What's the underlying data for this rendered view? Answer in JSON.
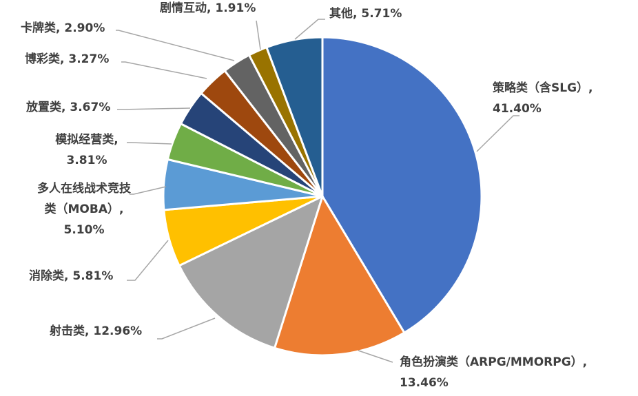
{
  "chart_data": {
    "type": "pie",
    "title": "",
    "slices": [
      {
        "name": "策略类（含SLG）",
        "value": 41.4,
        "label_lines": [
          "策略类（含SLG）,",
          "41.40%"
        ],
        "color": "#4472C4"
      },
      {
        "name": "角色扮演类（ARPG/MMORPG）",
        "value": 13.46,
        "label_lines": [
          "角色扮演类（ARPG/MMORPG）,",
          "13.46%"
        ],
        "color": "#ED7D31"
      },
      {
        "name": "射击类",
        "value": 12.96,
        "label_lines": [
          "射击类, 12.96%"
        ],
        "color": "#A5A5A5"
      },
      {
        "name": "消除类",
        "value": 5.81,
        "label_lines": [
          "消除类, 5.81%"
        ],
        "color": "#FFC000"
      },
      {
        "name": "多人在线战术竞技类（MOBA）",
        "value": 5.1,
        "label_lines": [
          "多人在线战术竞技",
          "类（MOBA）,",
          "5.10%"
        ],
        "color": "#5B9BD5"
      },
      {
        "name": "模拟经营类",
        "value": 3.81,
        "label_lines": [
          "模拟经营类,",
          "3.81%"
        ],
        "color": "#70AD47"
      },
      {
        "name": "放置类",
        "value": 3.67,
        "label_lines": [
          "放置类, 3.67%"
        ],
        "color": "#264478"
      },
      {
        "name": "博彩类",
        "value": 3.27,
        "label_lines": [
          "博彩类, 3.27%"
        ],
        "color": "#9E480E"
      },
      {
        "name": "卡牌类",
        "value": 2.9,
        "label_lines": [
          "卡牌类, 2.90%"
        ],
        "color": "#636363"
      },
      {
        "name": "剧情互动",
        "value": 1.91,
        "label_lines": [
          "剧情互动, 1.91%"
        ],
        "color": "#997300"
      },
      {
        "name": "其他",
        "value": 5.71,
        "label_lines": [
          "其他, 5.71%"
        ],
        "color": "#255E91"
      }
    ],
    "legend": "none",
    "data_labels": "outside-with-leader-lines"
  }
}
